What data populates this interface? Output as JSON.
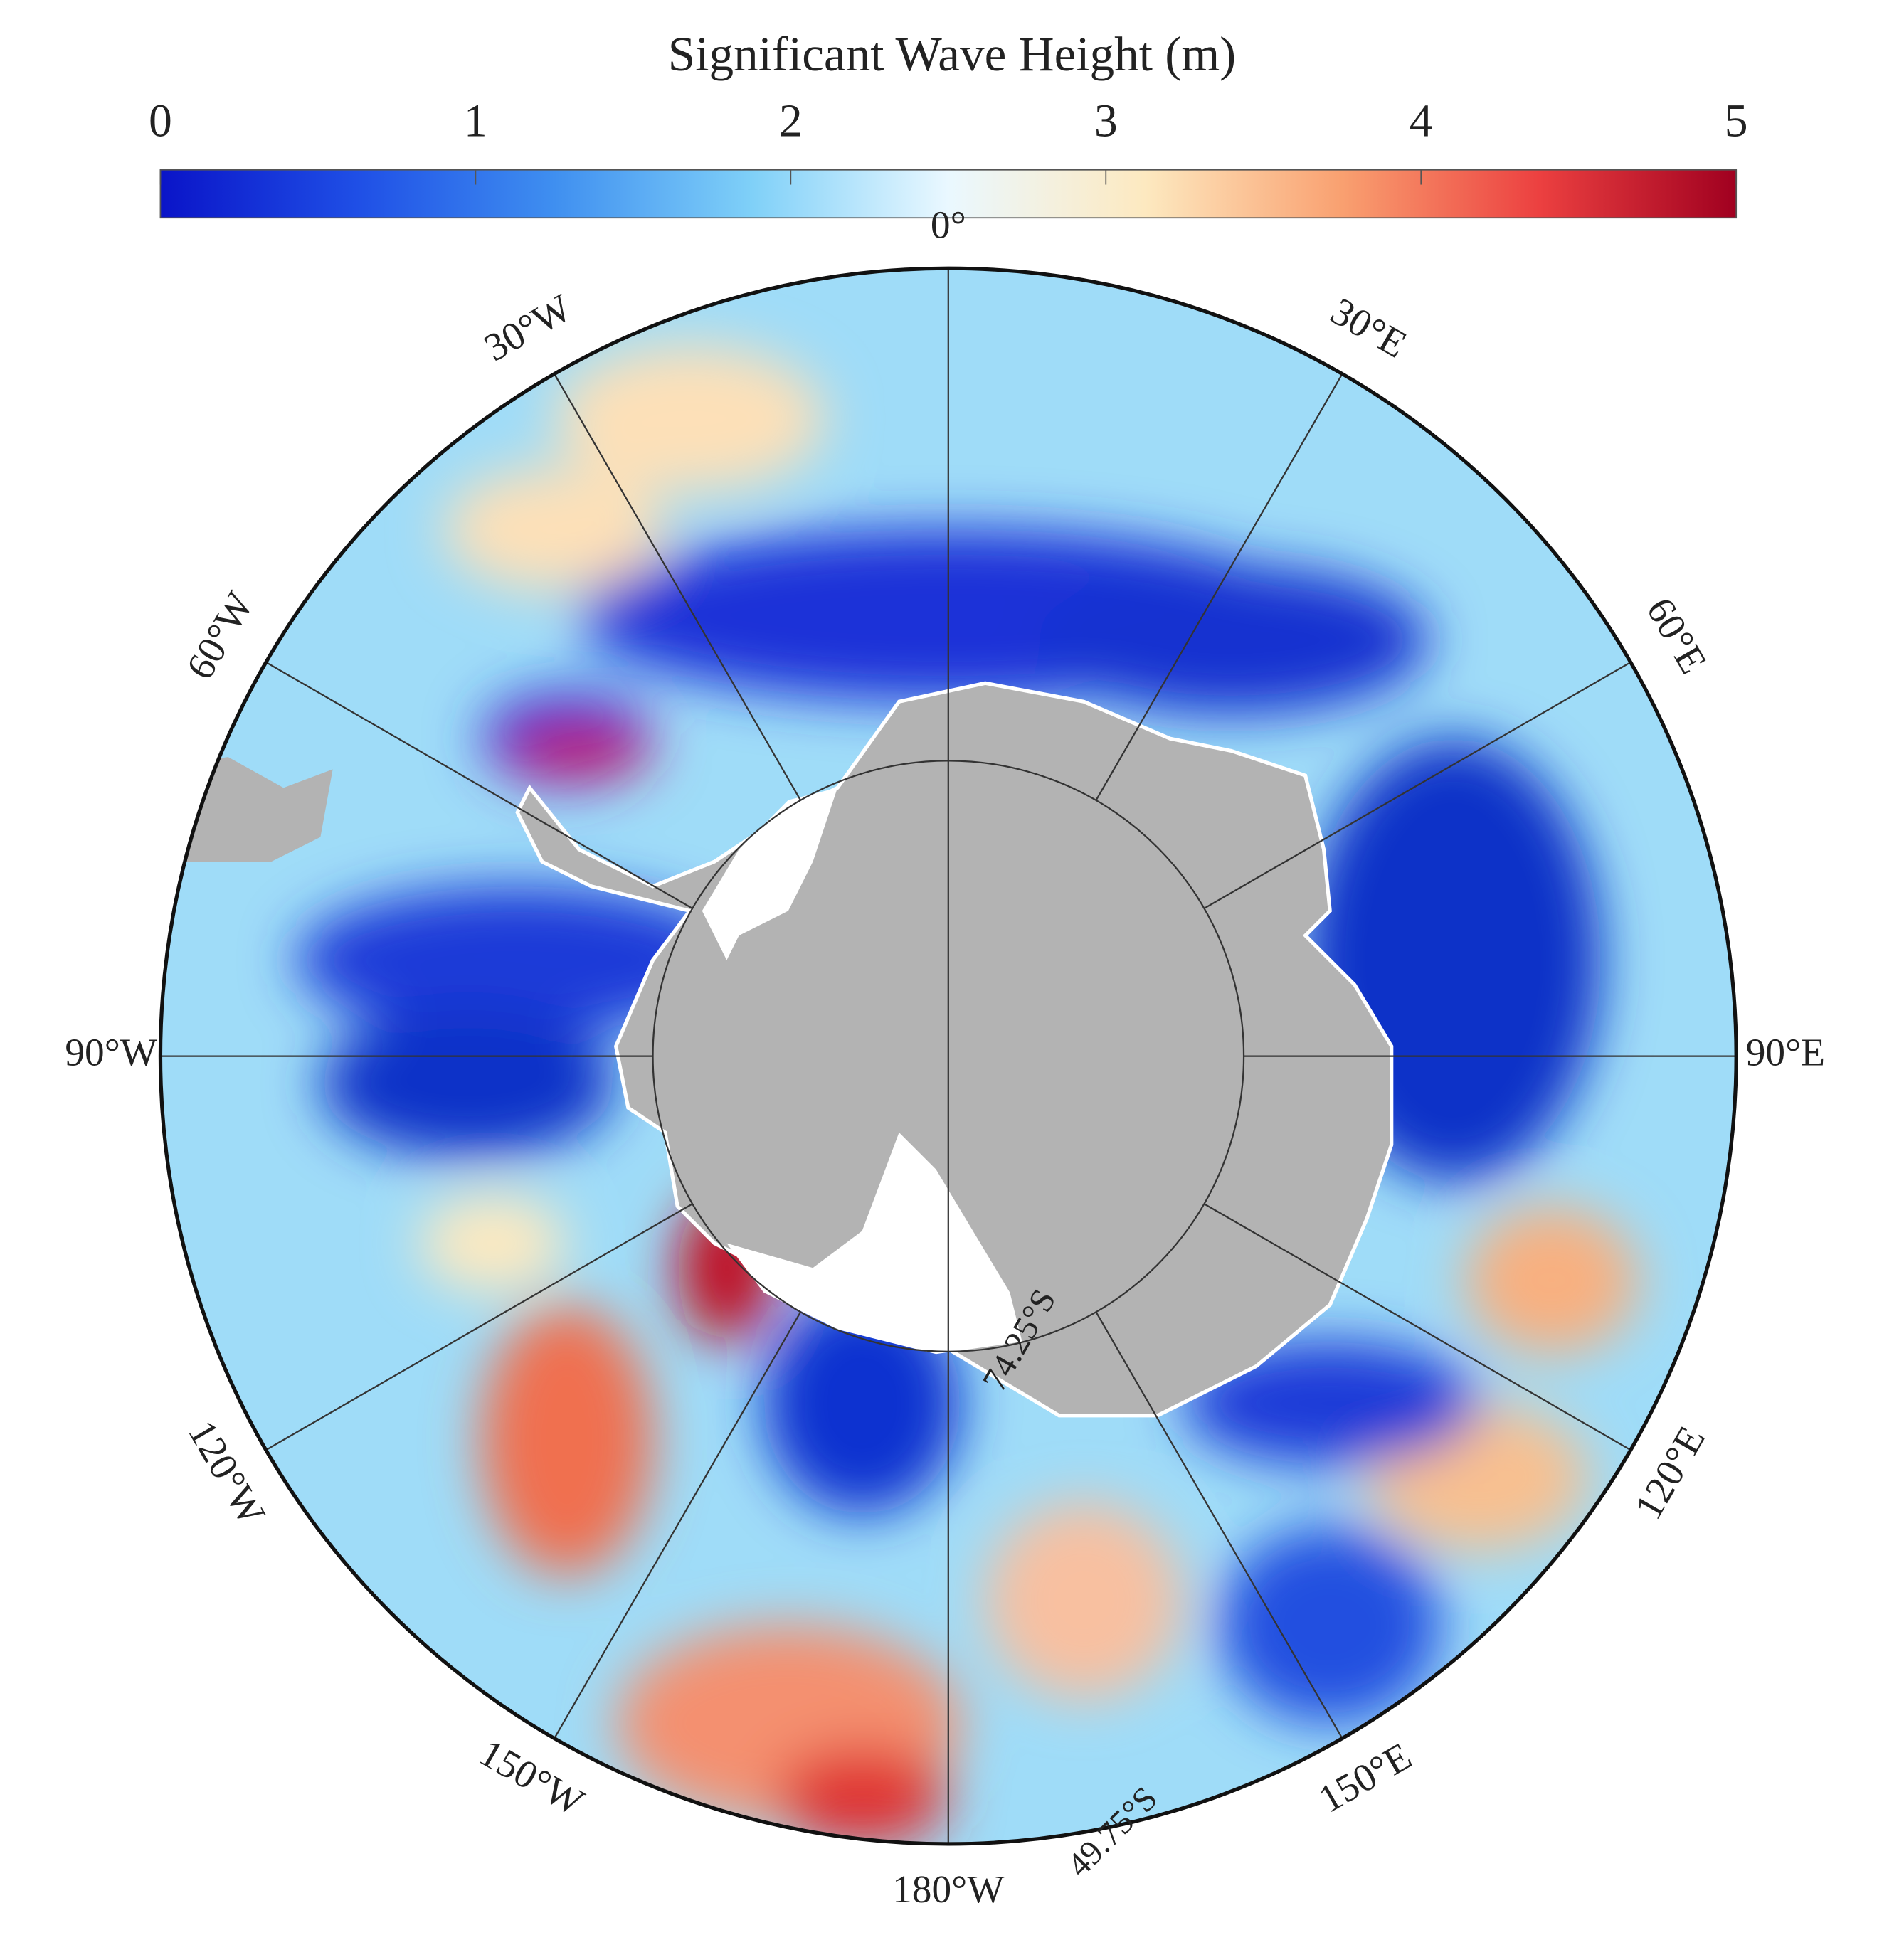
{
  "colorbar": {
    "title": "Significant Wave Height (m)",
    "lim": [
      0,
      5
    ],
    "ticks": [
      0,
      1,
      2,
      3,
      4,
      5
    ],
    "colors": [
      "#0a14c8",
      "#1f4fe6",
      "#3f8ff0",
      "#7fd0f8",
      "#eaf8ff",
      "#fde9c0",
      "#f9a070",
      "#ec4040",
      "#a00020"
    ]
  },
  "map": {
    "longitude_labels": [
      "0°",
      "30°E",
      "60°E",
      "90°E",
      "120°E",
      "150°E",
      "180°W",
      "150°W",
      "120°W",
      "90°W",
      "60°W",
      "30°W"
    ],
    "latitude_labels": [
      "74.25°S",
      "49.75°S"
    ]
  }
}
